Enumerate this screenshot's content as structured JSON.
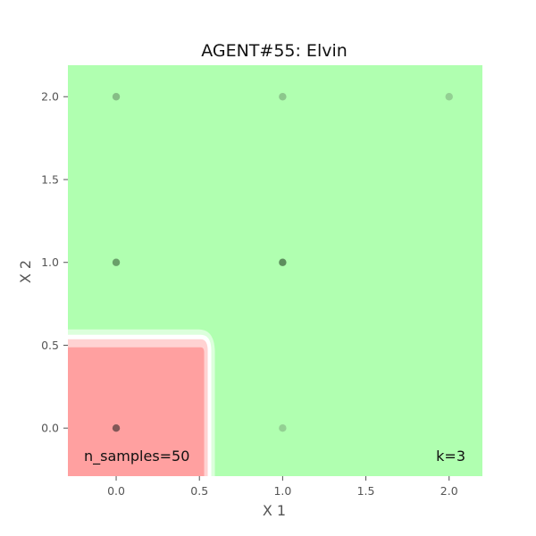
{
  "chart_data": {
    "type": "scatter",
    "title": "AGENT#55: Elvin",
    "xlabel": "X 1",
    "ylabel": "X 2",
    "xlim": [
      -0.29,
      2.2
    ],
    "ylim": [
      -0.29,
      2.19
    ],
    "xticks": [
      "0.0",
      "0.5",
      "1.0",
      "1.5",
      "2.0"
    ],
    "yticks": [
      "0.0",
      "0.5",
      "1.0",
      "1.5",
      "2.0"
    ],
    "annotations": {
      "samples": "n_samples=50",
      "k": "k=3"
    },
    "regions": [
      {
        "class": "red",
        "x_max": 0.55,
        "y_max": 0.52,
        "color": "#ffa0a0"
      },
      {
        "class": "green",
        "color": "#b0ffb0"
      }
    ],
    "points": [
      {
        "x": 0,
        "y": 0,
        "class": "red",
        "color": "#6b4a4a"
      },
      {
        "x": 1,
        "y": 0,
        "class": "green",
        "color": "#8ec88e"
      },
      {
        "x": 0,
        "y": 1,
        "class": "green",
        "color": "#5e8f5e"
      },
      {
        "x": 1,
        "y": 1,
        "class": "green",
        "color": "#4f7a4f"
      },
      {
        "x": 0,
        "y": 2,
        "class": "green",
        "color": "#7fb27f"
      },
      {
        "x": 1,
        "y": 2,
        "class": "green",
        "color": "#86bd86"
      },
      {
        "x": 2,
        "y": 2,
        "class": "green",
        "color": "#8ec88e"
      }
    ],
    "grid": false,
    "legend": "none"
  }
}
